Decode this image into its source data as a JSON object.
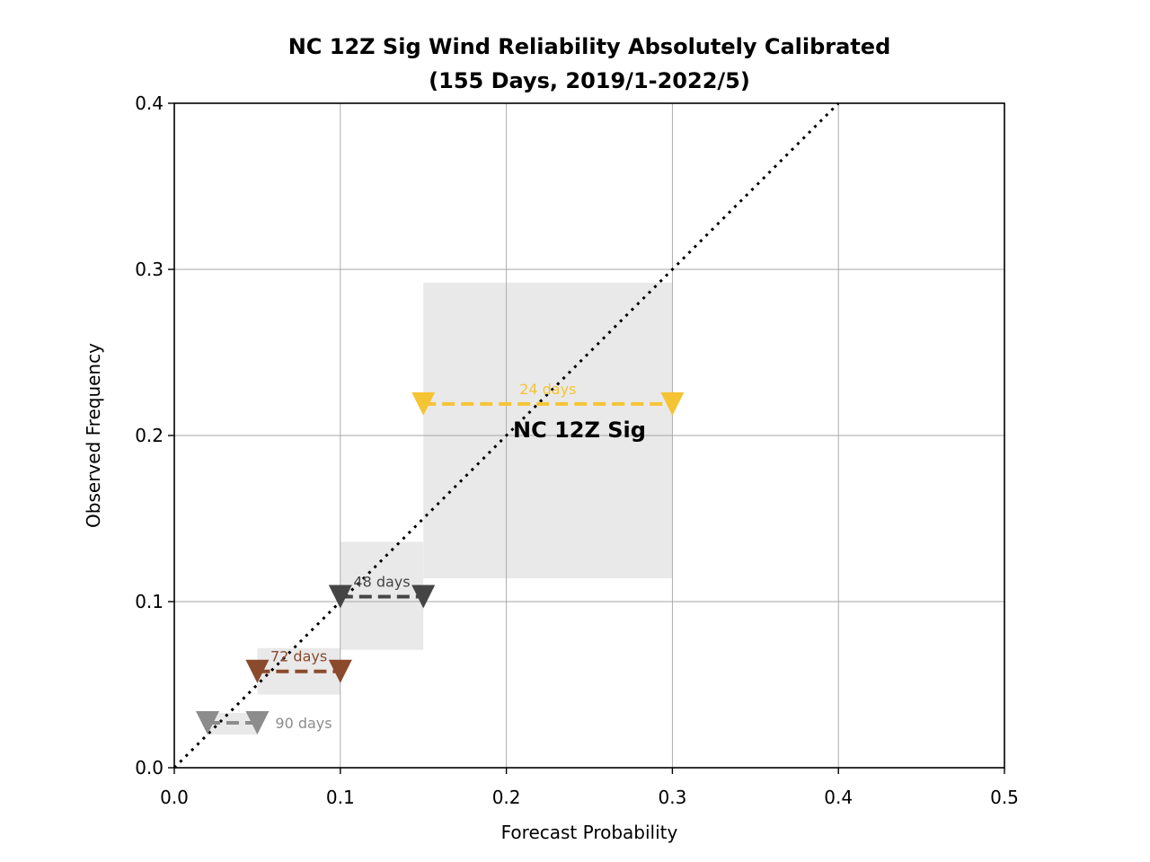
{
  "chart_data": {
    "type": "line",
    "title": "NC 12Z Sig Wind Reliability Absolutely Calibrated",
    "subtitle": "(155 Days, 2019/1-2022/5)",
    "xlabel": "Forecast Probability",
    "ylabel": "Observed Frequency",
    "xlim": [
      0.0,
      0.5
    ],
    "ylim": [
      0.0,
      0.4
    ],
    "xticks": [
      "0.0",
      "0.1",
      "0.2",
      "0.3",
      "0.4",
      "0.5"
    ],
    "yticks": [
      "0.0",
      "0.1",
      "0.2",
      "0.3",
      "0.4"
    ],
    "grid": true,
    "legend": "none",
    "diagonal": {
      "x": [
        0.0,
        0.4
      ],
      "y": [
        0.0,
        0.4
      ],
      "style": "dotted",
      "color": "#000000"
    },
    "annotation": "NC 12Z Sig",
    "bins": [
      {
        "label": "90 days",
        "x_low": 0.02,
        "x_high": 0.05,
        "observed": 0.027,
        "ci_low": 0.02,
        "ci_high": 0.033,
        "color": "#8c8c8c"
      },
      {
        "label": "72 days",
        "x_low": 0.05,
        "x_high": 0.1,
        "observed": 0.058,
        "ci_low": 0.044,
        "ci_high": 0.072,
        "color": "#8b4a2c"
      },
      {
        "label": "48 days",
        "x_low": 0.1,
        "x_high": 0.15,
        "observed": 0.103,
        "ci_low": 0.071,
        "ci_high": 0.136,
        "color": "#454545"
      },
      {
        "label": "24 days",
        "x_low": 0.15,
        "x_high": 0.3,
        "observed": 0.219,
        "ci_low": 0.114,
        "ci_high": 0.292,
        "color": "#f5c434"
      }
    ]
  }
}
